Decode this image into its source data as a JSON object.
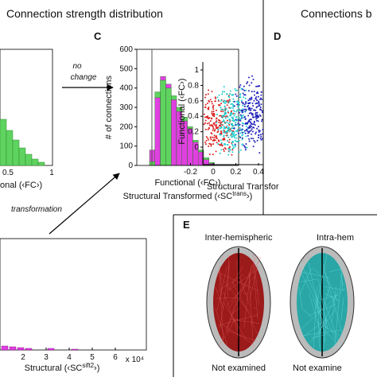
{
  "header": {
    "title": "Connection strength distribution",
    "title_right": "Connections b"
  },
  "panel_b": {
    "xticks": [
      "0.5",
      "1"
    ],
    "xlabel": "onal (‹FC›)"
  },
  "arrows": {
    "no": "no",
    "change": "change",
    "transformation": "transformation"
  },
  "panel_c": {
    "label": "C",
    "type": "bar",
    "ylabel": "# of connections",
    "xlabel": "Functional (‹FC›)",
    "xlabel2": {
      "before": "Structural Transformed (‹SC",
      "sup": "trans",
      "after": "›)"
    },
    "ylim": [
      0,
      600
    ],
    "yticks": [
      0,
      100,
      200,
      300,
      400,
      500,
      600
    ],
    "series": [
      {
        "name": "Structural",
        "color": "#e040e0",
        "values": [
          80,
          350,
          460,
          420,
          340,
          280,
          230,
          190,
          120,
          70,
          30,
          10
        ]
      },
      {
        "name": "Functional",
        "color": "#5fd35f",
        "values": [
          20,
          380,
          440,
          400,
          360,
          300,
          250,
          200,
          130,
          80,
          40,
          15
        ]
      }
    ]
  },
  "panel_d": {
    "label": "D",
    "ylabel": "Functional (‹FC›)",
    "xlabel": "Structural Transfor",
    "yticks": [
      0,
      0.2,
      0.4,
      0.6,
      0.8,
      1
    ],
    "xticks": [
      -0.2,
      0,
      0.2,
      0.4
    ]
  },
  "panel_a2": {
    "xticks": [
      2,
      3,
      4,
      5,
      6
    ],
    "exponent": "x 10⁴",
    "xlabel": {
      "before": "Structural (‹SC",
      "sup": "sift2",
      "after": "›)"
    }
  },
  "panel_e": {
    "label": "E",
    "left_title": "Inter-hemispheric",
    "right_title": "Intra-hem",
    "left_caption": "Not examined",
    "right_caption": "Not examine"
  }
}
